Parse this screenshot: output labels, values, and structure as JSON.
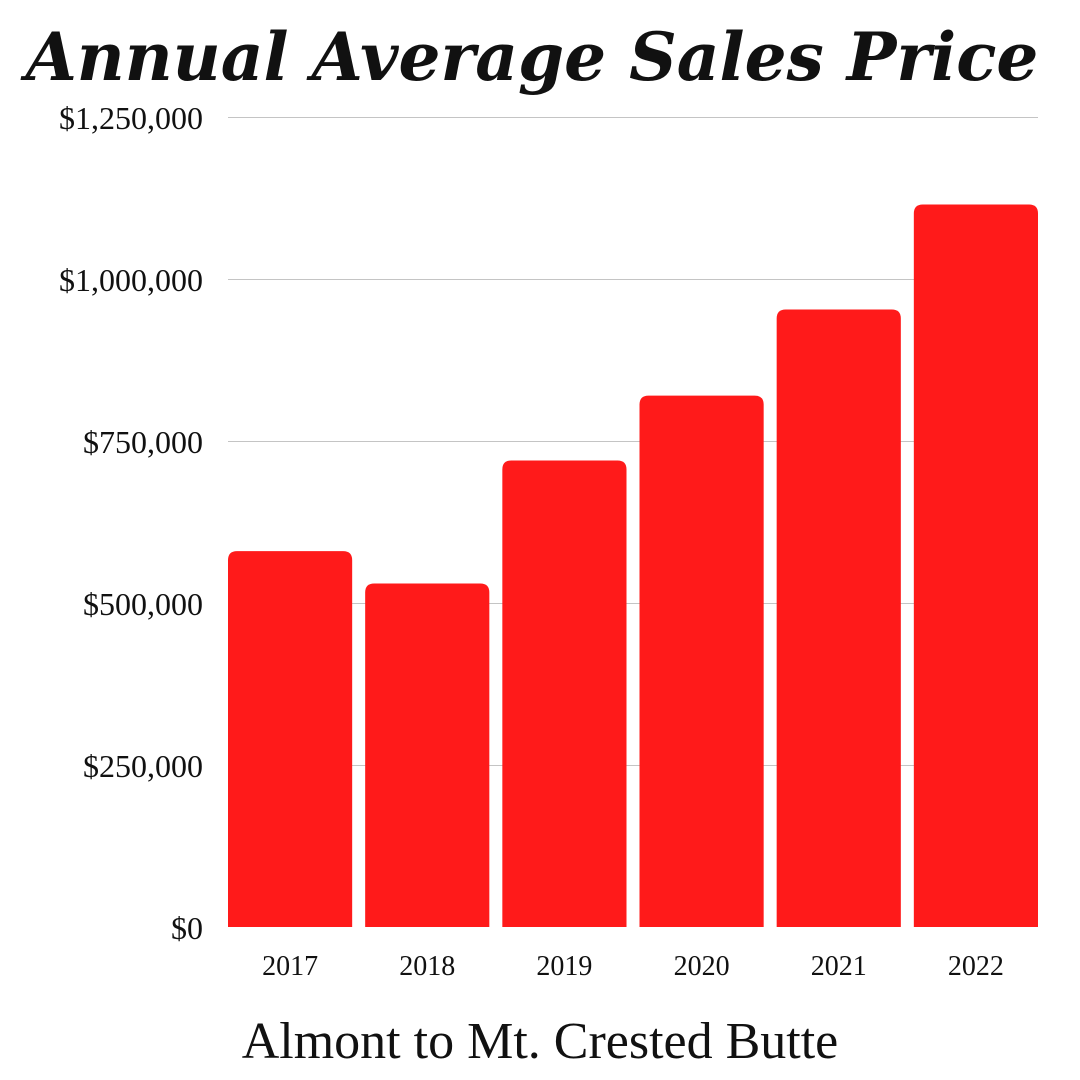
{
  "chart_data": {
    "type": "bar",
    "title": "Annual Average Sales Price",
    "subtitle": "Almont to Mt. Crested Butte",
    "xlabel": "",
    "ylabel": "",
    "categories": [
      "2017",
      "2018",
      "2019",
      "2020",
      "2021",
      "2022"
    ],
    "values": [
      580000,
      530000,
      720000,
      820000,
      953000,
      1115000
    ],
    "ylim": [
      0,
      1250000
    ],
    "yticks": [
      0,
      250000,
      500000,
      750000,
      1000000,
      1250000
    ],
    "ytick_labels": [
      "$0",
      "$250,000",
      "$500,000",
      "$750,000",
      "$1,000,000",
      "$1,250,000"
    ],
    "grid": true,
    "legend": "none",
    "bar_color": "#ff1a1a"
  }
}
